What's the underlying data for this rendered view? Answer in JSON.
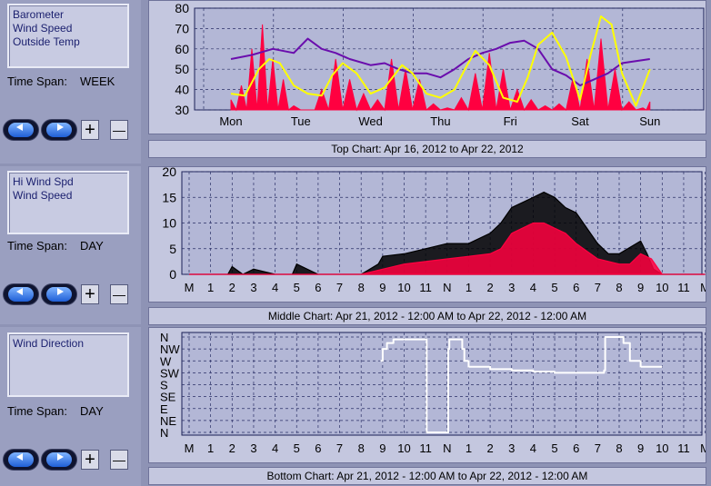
{
  "panels": [
    {
      "legend": [
        "Barometer",
        "Wind Speed",
        "Outside Temp"
      ],
      "time_span_label": "Time Span:",
      "time_span_value": "WEEK",
      "caption": "Top Chart:  Apr 16, 2012  to  Apr 22, 2012"
    },
    {
      "legend": [
        "Hi Wind Spd",
        "Wind Speed"
      ],
      "time_span_label": "Time Span:",
      "time_span_value": "DAY",
      "caption": "Middle Chart:  Apr 21, 2012 - 12:00 AM  to  Apr 22, 2012 - 12:00 AM"
    },
    {
      "legend": [
        "Wind Direction"
      ],
      "time_span_label": "Time Span:",
      "time_span_value": "DAY",
      "caption": "Bottom Chart:  Apr 21, 2012 - 12:00 AM  to  Apr 22, 2012 - 12:00 AM"
    }
  ],
  "controls": {
    "back_icon": "left-arrow-icon",
    "forward_icon": "right-arrow-icon",
    "plus": "+",
    "minus": "—"
  },
  "colors": {
    "barometer": "#6a0dad",
    "wind_speed": "#ff0040",
    "outside_temp": "#ffff00",
    "hi_wind": "#000000",
    "wind_dir": "#ffffff",
    "plot_bg": "#b3b7d6",
    "grid": "#2a2f66"
  },
  "chart_data": [
    {
      "type": "line",
      "x_categories": [
        "Mon",
        "Tue",
        "Wed",
        "Thu",
        "Fri",
        "Sat",
        "Sun"
      ],
      "ylim": [
        30,
        80
      ],
      "yticks": [
        30,
        40,
        50,
        60,
        70,
        80
      ],
      "grid": true,
      "series": [
        {
          "name": "Barometer",
          "x_day": [
            0,
            0.3,
            0.6,
            0.9,
            1.1,
            1.3,
            1.5,
            1.7,
            2.0,
            2.2,
            2.4,
            2.6,
            2.8,
            3.0,
            3.2,
            3.4,
            3.6,
            3.8,
            4.0,
            4.2,
            4.4,
            4.6,
            4.8,
            5.0,
            5.2,
            5.4,
            5.6,
            5.8,
            6.0
          ],
          "values": [
            55,
            57,
            60,
            58,
            65,
            60,
            58,
            55,
            52,
            53,
            50,
            48,
            48,
            46,
            50,
            55,
            58,
            60,
            63,
            64,
            60,
            50,
            47,
            42,
            45,
            48,
            53,
            54,
            55
          ]
        },
        {
          "name": "Wind Speed",
          "x_day": [
            0,
            0.15,
            0.3,
            0.45,
            0.6,
            0.75,
            0.9,
            1.1,
            1.3,
            1.5,
            1.7,
            1.9,
            2.1,
            2.3,
            2.5,
            2.7,
            2.9,
            3.1,
            3.3,
            3.5,
            3.7,
            3.9,
            4.1,
            4.3,
            4.5,
            4.7,
            4.9,
            5.1,
            5.3,
            5.5,
            5.7,
            5.9,
            6.0
          ],
          "values": [
            35,
            42,
            60,
            72,
            55,
            45,
            32,
            30,
            40,
            55,
            45,
            38,
            35,
            55,
            50,
            45,
            33,
            31,
            36,
            48,
            58,
            50,
            40,
            35,
            32,
            33,
            46,
            55,
            65,
            50,
            34,
            31,
            34
          ]
        },
        {
          "name": "Outside Temp",
          "x_day": [
            0,
            0.2,
            0.4,
            0.55,
            0.7,
            0.9,
            1.1,
            1.3,
            1.45,
            1.6,
            1.8,
            2.0,
            2.2,
            2.45,
            2.6,
            2.8,
            3.0,
            3.2,
            3.35,
            3.5,
            3.7,
            3.9,
            4.1,
            4.25,
            4.4,
            4.6,
            4.8,
            5.0,
            5.15,
            5.3,
            5.45,
            5.6,
            5.8,
            6.0
          ],
          "values": [
            38,
            37,
            50,
            55,
            53,
            42,
            38,
            37,
            47,
            53,
            48,
            38,
            41,
            52,
            48,
            38,
            36,
            40,
            50,
            59,
            52,
            36,
            34,
            46,
            62,
            68,
            56,
            35,
            57,
            76,
            72,
            48,
            32,
            50
          ]
        }
      ]
    },
    {
      "type": "line",
      "x_categories": [
        "M",
        "1",
        "2",
        "3",
        "4",
        "5",
        "6",
        "7",
        "8",
        "9",
        "10",
        "11",
        "N",
        "1",
        "2",
        "3",
        "4",
        "5",
        "6",
        "7",
        "8",
        "9",
        "10",
        "11",
        "M"
      ],
      "ylim": [
        0,
        20
      ],
      "yticks": [
        0,
        5,
        10,
        15,
        20
      ],
      "grid": true,
      "series": [
        {
          "name": "Hi Wind Spd",
          "x_hour": [
            0,
            1,
            1.8,
            2,
            2.5,
            3,
            4,
            4.8,
            5,
            6,
            7,
            8,
            8.8,
            9,
            10,
            11,
            12,
            13,
            14,
            14.5,
            15,
            15.5,
            16,
            16.5,
            17,
            17.5,
            18,
            19,
            19.5,
            20,
            21,
            21.3,
            21.6,
            22,
            23,
            24
          ],
          "values": [
            0,
            0,
            0,
            1.5,
            0,
            1,
            0,
            0,
            2,
            0,
            0,
            0,
            2,
            3.5,
            4,
            5,
            6,
            6,
            8,
            10,
            13,
            14,
            15,
            16,
            15,
            13,
            12,
            6,
            4,
            4,
            6.5,
            4,
            1,
            0,
            0,
            0
          ]
        },
        {
          "name": "Wind Speed",
          "x_hour": [
            0,
            1,
            2,
            3,
            4,
            5,
            6,
            7,
            8,
            9,
            10,
            11,
            12,
            13,
            14,
            14.5,
            15,
            15.5,
            16,
            16.5,
            17,
            17.5,
            18,
            19,
            20,
            20.5,
            21,
            21.5,
            22,
            23,
            24
          ],
          "values": [
            0,
            0,
            0,
            0,
            0,
            0,
            0,
            0,
            0,
            1,
            2,
            2.5,
            3,
            3.5,
            4,
            5,
            8,
            9,
            10,
            10,
            9,
            8,
            6,
            3,
            2,
            2,
            4,
            3,
            0,
            0,
            0
          ]
        }
      ]
    },
    {
      "type": "line",
      "x_categories": [
        "M",
        "1",
        "2",
        "3",
        "4",
        "5",
        "6",
        "7",
        "8",
        "9",
        "10",
        "11",
        "N",
        "1",
        "2",
        "3",
        "4",
        "5",
        "6",
        "7",
        "8",
        "9",
        "10",
        "11",
        "M"
      ],
      "y_categories": [
        "N",
        "NE",
        "E",
        "SE",
        "S",
        "SW",
        "W",
        "NW",
        "N"
      ],
      "grid": true,
      "series": [
        {
          "name": "Wind Direction",
          "x_hour": [
            8.9,
            9.0,
            9.2,
            9.5,
            10.0,
            11.0,
            11.05,
            11.1,
            12.0,
            12.05,
            12.1,
            12.6,
            12.7,
            12.8,
            13.0,
            13.5,
            14.0,
            15.0,
            16.0,
            17.0,
            18.0,
            19.0,
            19.3,
            19.35,
            20.0,
            20.2,
            20.5,
            21.0,
            21.5,
            22.0
          ],
          "values": [
            6,
            7,
            7.5,
            7.8,
            7.8,
            7.8,
            0,
            0,
            0,
            7,
            7.8,
            7.8,
            7,
            6,
            5.5,
            5.5,
            5.3,
            5.2,
            5.1,
            5.0,
            5.0,
            5.0,
            5.2,
            8,
            8,
            7.5,
            6,
            5.5,
            5.5,
            5.5
          ]
        }
      ]
    }
  ]
}
